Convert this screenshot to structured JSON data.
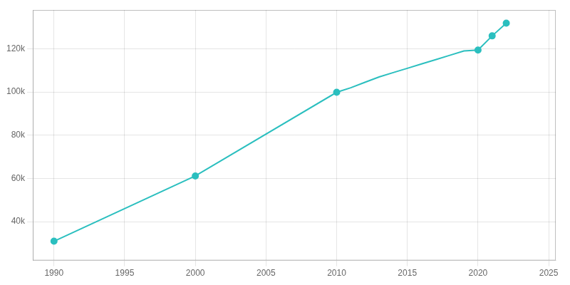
{
  "chart_data": {
    "type": "line",
    "series": [
      {
        "type": "line",
        "marker": "none",
        "color": "#2BBFBF",
        "x": [
          1990,
          2000,
          2010,
          2011,
          2012,
          2013,
          2014,
          2015,
          2016,
          2017,
          2018,
          2019,
          2020,
          2021,
          2022
        ],
        "values": [
          30923,
          61136,
          99887,
          102000,
          104500,
          107000,
          109000,
          111000,
          113000,
          115000,
          117000,
          119000,
          119468,
          126000,
          131877
        ]
      },
      {
        "type": "scatter",
        "marker": "circle",
        "color": "#2BBFBF",
        "x": [
          1990,
          2000,
          2010,
          2020,
          2021,
          2022
        ],
        "values": [
          30923,
          61136,
          99887,
          119468,
          126000,
          131877
        ]
      }
    ],
    "xlim": [
      1988.5,
      2025.5
    ],
    "ylim": [
      22000,
      138000
    ],
    "xticks": [
      1990,
      1995,
      2000,
      2005,
      2010,
      2015,
      2020,
      2025
    ],
    "yticks": [
      {
        "value": 40000,
        "label": "40k"
      },
      {
        "value": 60000,
        "label": "60k"
      },
      {
        "value": 80000,
        "label": "80k"
      },
      {
        "value": 100000,
        "label": "100k"
      },
      {
        "value": 120000,
        "label": "120k"
      }
    ],
    "grid": true
  }
}
